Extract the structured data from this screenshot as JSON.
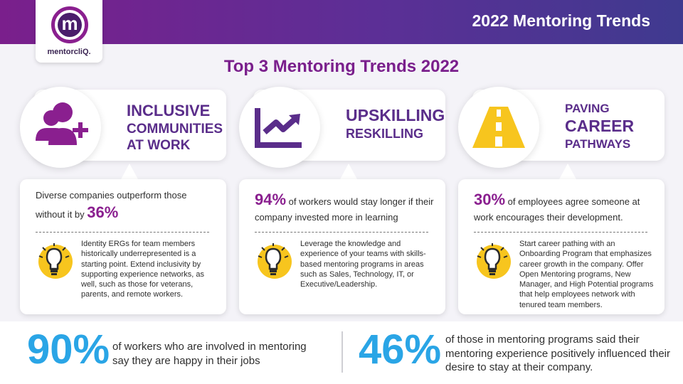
{
  "header": {
    "title": "2022 Mentoring Trends"
  },
  "logo": {
    "letter": "m",
    "brand": "mentorcliQ."
  },
  "main_title": "Top 3 Mentoring Trends 2022",
  "trends": [
    {
      "heading_lines": [
        "INCLUSIVE",
        "COMMUNITIES",
        "AT WORK"
      ],
      "icon": "people-plus-icon",
      "stat_prefix": "Diverse companies outperform those without it by",
      "stat_value": "36%",
      "stat_suffix": "",
      "tip": "Identity ERGs for team members historically underrepresented is a starting point. Extend inclusivity by supporting experience networks, as well, such as those for veterans, parents, and remote workers."
    },
    {
      "heading_lines": [
        "UPSKILLING",
        "RESKILLING"
      ],
      "icon": "trend-chart-icon",
      "stat_prefix": "",
      "stat_value": "94%",
      "stat_suffix": "of workers would stay longer if their company invested more in learning",
      "tip": "Leverage the knowledge and experience of your teams with skills-based mentoring programs in areas such as Sales, Technology, IT, or Executive/Leadership."
    },
    {
      "heading_lines": [
        "PAVING",
        "CAREER",
        "PATHWAYS"
      ],
      "icon": "road-icon",
      "stat_prefix": "",
      "stat_value": "30%",
      "stat_suffix": "of employees agree someone at work encourages their development.",
      "tip": "Start career pathing with an Onboarding Program that emphasizes career growth in the company. Offer Open Mentoring programs, New Manager, and High Potential programs that help employees network with tenured team members."
    }
  ],
  "bottom_stats": [
    {
      "value": "90%",
      "text": "of workers who are involved in mentoring say they are happy in their jobs"
    },
    {
      "value": "46%",
      "text": "of those in mentoring programs said their mentoring experience positively influenced their desire to stay at their company."
    }
  ],
  "colors": {
    "purple": "#7a1f8c",
    "dark_purple": "#5a2d8a",
    "blue": "#2aa5e6",
    "yellow": "#f7c51e"
  }
}
